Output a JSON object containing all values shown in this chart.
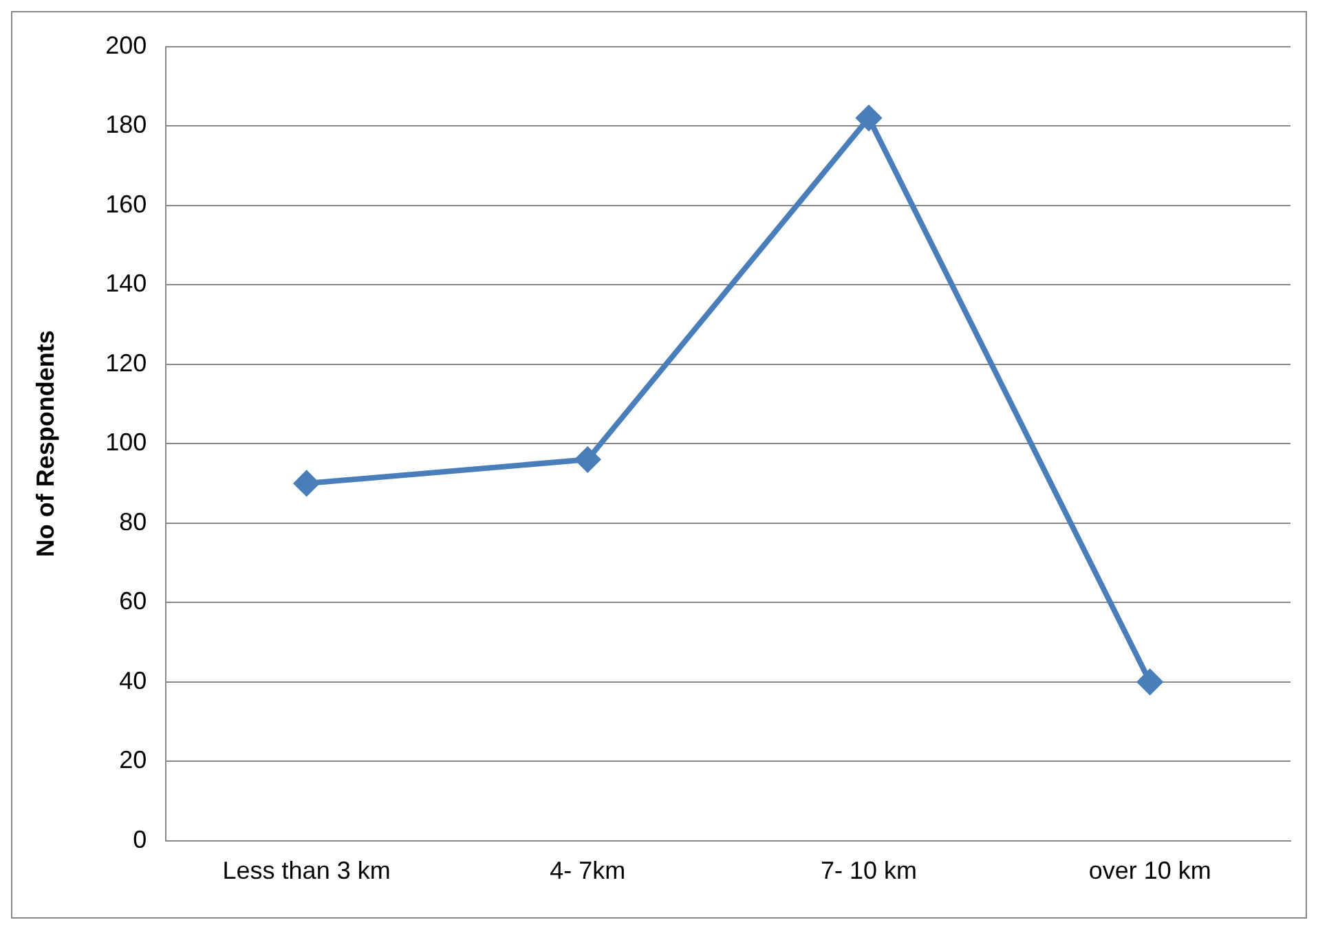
{
  "chart_data": {
    "type": "line",
    "ylabel": "No of Respondents",
    "categories": [
      "Less than 3 km",
      "4- 7km",
      "7- 10 km",
      "over 10 km"
    ],
    "series": [
      {
        "color": "#4a7ebb",
        "values": [
          90,
          96,
          182,
          40
        ]
      }
    ],
    "ylim": [
      0,
      200
    ],
    "yticks": [
      0,
      20,
      40,
      60,
      80,
      100,
      120,
      140,
      160,
      180,
      200
    ],
    "grid": "y",
    "legend": false,
    "marker": "diamond",
    "line_style": "solid"
  }
}
